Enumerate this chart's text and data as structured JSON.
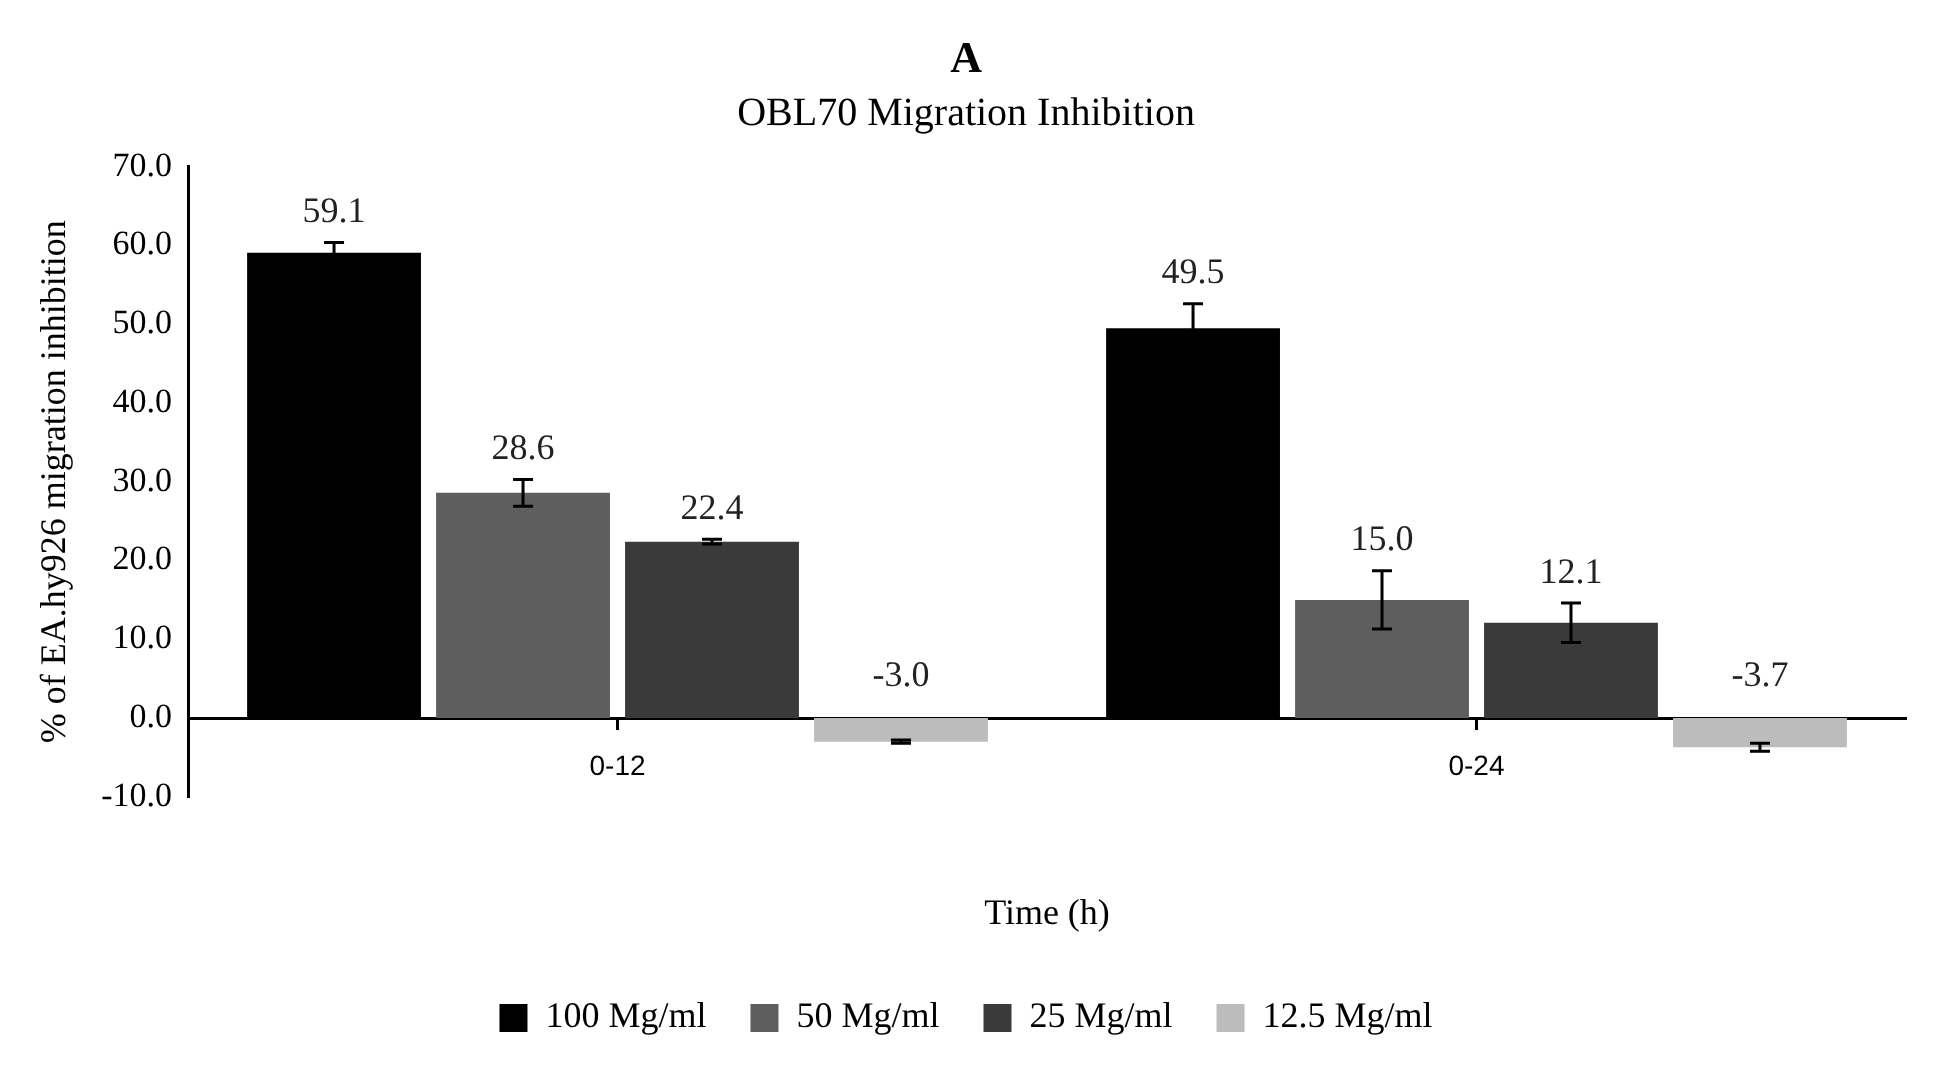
{
  "chart_data": {
    "type": "bar",
    "title": "A",
    "subtitle": "OBL70 Migration Inhibition",
    "xlabel": "Time (h)",
    "ylabel": "% of EA.hy926 migration inhibition",
    "categories": [
      "0-12",
      "0-24"
    ],
    "series": [
      {
        "name": "100 Mg/ml",
        "color": "#000000",
        "values": [
          59.1,
          49.5
        ],
        "errors": [
          1.3,
          3.1
        ],
        "value_labels": [
          "59.1",
          "49.5"
        ]
      },
      {
        "name": "50 Mg/ml",
        "color": "#5e5e5e",
        "values": [
          28.6,
          15.0
        ],
        "errors": [
          1.7,
          3.7
        ],
        "value_labels": [
          "28.6",
          "15.0"
        ]
      },
      {
        "name": "25 Mg/ml",
        "color": "#3a3a3a",
        "values": [
          22.4,
          12.1
        ],
        "errors": [
          0.3,
          2.5
        ],
        "value_labels": [
          "22.4",
          "12.1"
        ]
      },
      {
        "name": "12.5 Mg/ml",
        "color": "#bcbcbc",
        "values": [
          -3.0,
          -3.7
        ],
        "errors": [
          0.2,
          0.5
        ],
        "value_labels": [
          "-3.0",
          "-3.7"
        ]
      }
    ],
    "ylim": [
      -10,
      70
    ],
    "yticks": [
      {
        "value": -10,
        "label": "-10.0"
      },
      {
        "value": 0,
        "label": "0.0"
      },
      {
        "value": 10,
        "label": "10.0"
      },
      {
        "value": 20,
        "label": "20.0"
      },
      {
        "value": 30,
        "label": "30.0"
      },
      {
        "value": 40,
        "label": "40.0"
      },
      {
        "value": 50,
        "label": "50.0"
      },
      {
        "value": 60,
        "label": "60.0"
      },
      {
        "value": 70,
        "label": "70.0"
      }
    ],
    "grid": false,
    "legend": "bottom"
  }
}
